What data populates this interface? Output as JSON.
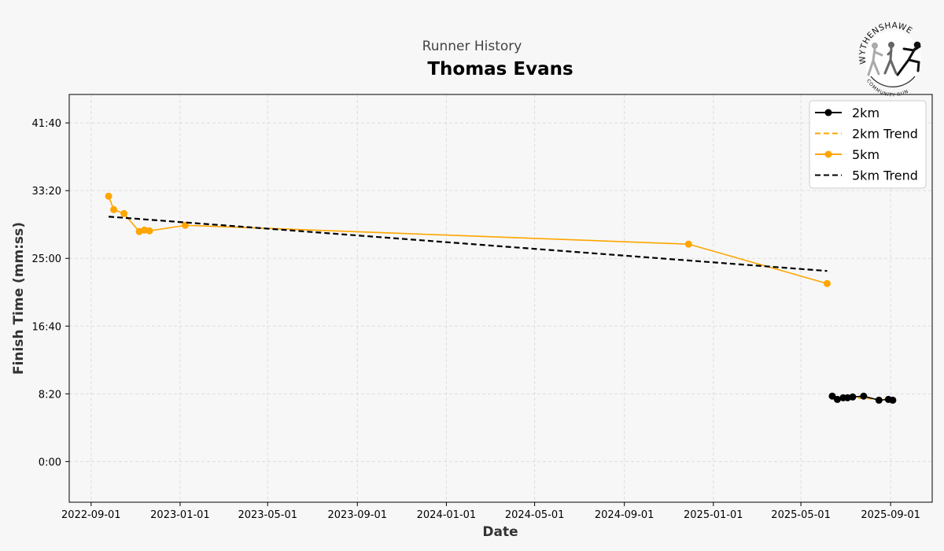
{
  "chart_data": {
    "type": "line",
    "subtitle": "Runner History",
    "title": "Thomas Evans",
    "xlabel": "Date",
    "ylabel": "Finish Time (mm:ss)",
    "logo_text": [
      "WYTHENSHAWE",
      "COMMUNITY RUN"
    ],
    "x_ticks": [
      "2022-09-01",
      "2023-01-01",
      "2023-05-01",
      "2023-09-01",
      "2024-01-01",
      "2024-05-01",
      "2024-09-01",
      "2025-01-01",
      "2025-05-01",
      "2025-09-01"
    ],
    "y_ticks_seconds": [
      0,
      500,
      1000,
      1500,
      2000,
      2500
    ],
    "y_tick_labels": [
      "0:00",
      "8:20",
      "16:40",
      "25:00",
      "33:20",
      "41:40"
    ],
    "xlim": [
      "2022-08-02",
      "2025-10-28"
    ],
    "ylim_seconds": [
      -300,
      2710
    ],
    "grid": true,
    "legend_position": "top-right",
    "series": [
      {
        "name": "2km",
        "color": "#000000",
        "style": "solid-marker",
        "x": [
          "2025-06-13",
          "2025-06-20",
          "2025-06-28",
          "2025-07-04",
          "2025-07-11",
          "2025-07-26",
          "2025-08-16",
          "2025-08-29",
          "2025-09-04"
        ],
        "y_seconds": [
          483,
          459,
          471,
          471,
          477,
          483,
          453,
          459,
          453
        ]
      },
      {
        "name": "2km Trend",
        "color": "#ffa500",
        "style": "dashed",
        "x": [
          "2025-06-13",
          "2025-09-04"
        ],
        "y_seconds": [
          478,
          458
        ]
      },
      {
        "name": "5km",
        "color": "#ffa500",
        "style": "solid-marker",
        "x": [
          "2022-09-25",
          "2022-10-02",
          "2022-10-16",
          "2022-11-06",
          "2022-11-13",
          "2022-11-20",
          "2023-01-08",
          "2024-11-28",
          "2025-06-06"
        ],
        "y_seconds": [
          1959,
          1860,
          1831,
          1698,
          1709,
          1703,
          1744,
          1605,
          1314
        ]
      },
      {
        "name": "5km Trend",
        "color": "#000000",
        "style": "dashed",
        "x": [
          "2022-09-25",
          "2025-06-06"
        ],
        "y_seconds": [
          1808,
          1407
        ]
      }
    ]
  }
}
